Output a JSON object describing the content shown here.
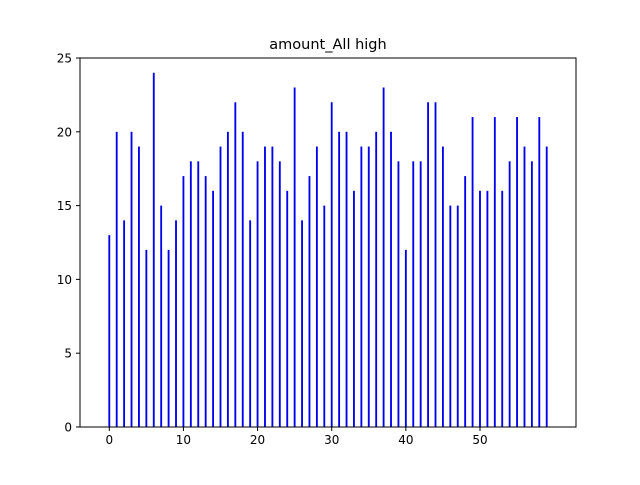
{
  "chart_data": {
    "type": "bar",
    "title": "amount_All high",
    "xlabel": "",
    "ylabel": "",
    "x": [
      0,
      1,
      2,
      3,
      4,
      5,
      6,
      7,
      8,
      9,
      10,
      11,
      12,
      13,
      14,
      15,
      16,
      17,
      18,
      19,
      20,
      21,
      22,
      23,
      24,
      25,
      26,
      27,
      28,
      29,
      30,
      31,
      32,
      33,
      34,
      35,
      36,
      37,
      38,
      39,
      40,
      41,
      42,
      43,
      44,
      45,
      46,
      47,
      48,
      49,
      50,
      51,
      52,
      53,
      54,
      55,
      56,
      57,
      58,
      59
    ],
    "values": [
      13,
      20,
      14,
      20,
      19,
      12,
      24,
      15,
      12,
      14,
      17,
      18,
      18,
      17,
      16,
      19,
      20,
      22,
      20,
      14,
      18,
      19,
      19,
      18,
      16,
      23,
      14,
      17,
      19,
      15,
      22,
      20,
      20,
      16,
      19,
      19,
      20,
      23,
      20,
      18,
      12,
      18,
      18,
      22,
      22,
      19,
      15,
      15,
      17,
      21,
      16,
      16,
      21,
      16,
      18,
      21,
      19,
      18,
      21,
      19
    ],
    "xlim": [
      -3.95,
      62.95
    ],
    "ylim": [
      0,
      25
    ],
    "xticks": [
      "0",
      "10",
      "20",
      "30",
      "40",
      "50"
    ],
    "xtick_values": [
      0,
      10,
      20,
      30,
      40,
      50
    ],
    "yticks": [
      "0",
      "5",
      "10",
      "15",
      "20",
      "25"
    ],
    "ytick_values": [
      0,
      5,
      10,
      15,
      20,
      25
    ],
    "bar_color": "#0000ee",
    "grid": false,
    "legend": false
  }
}
